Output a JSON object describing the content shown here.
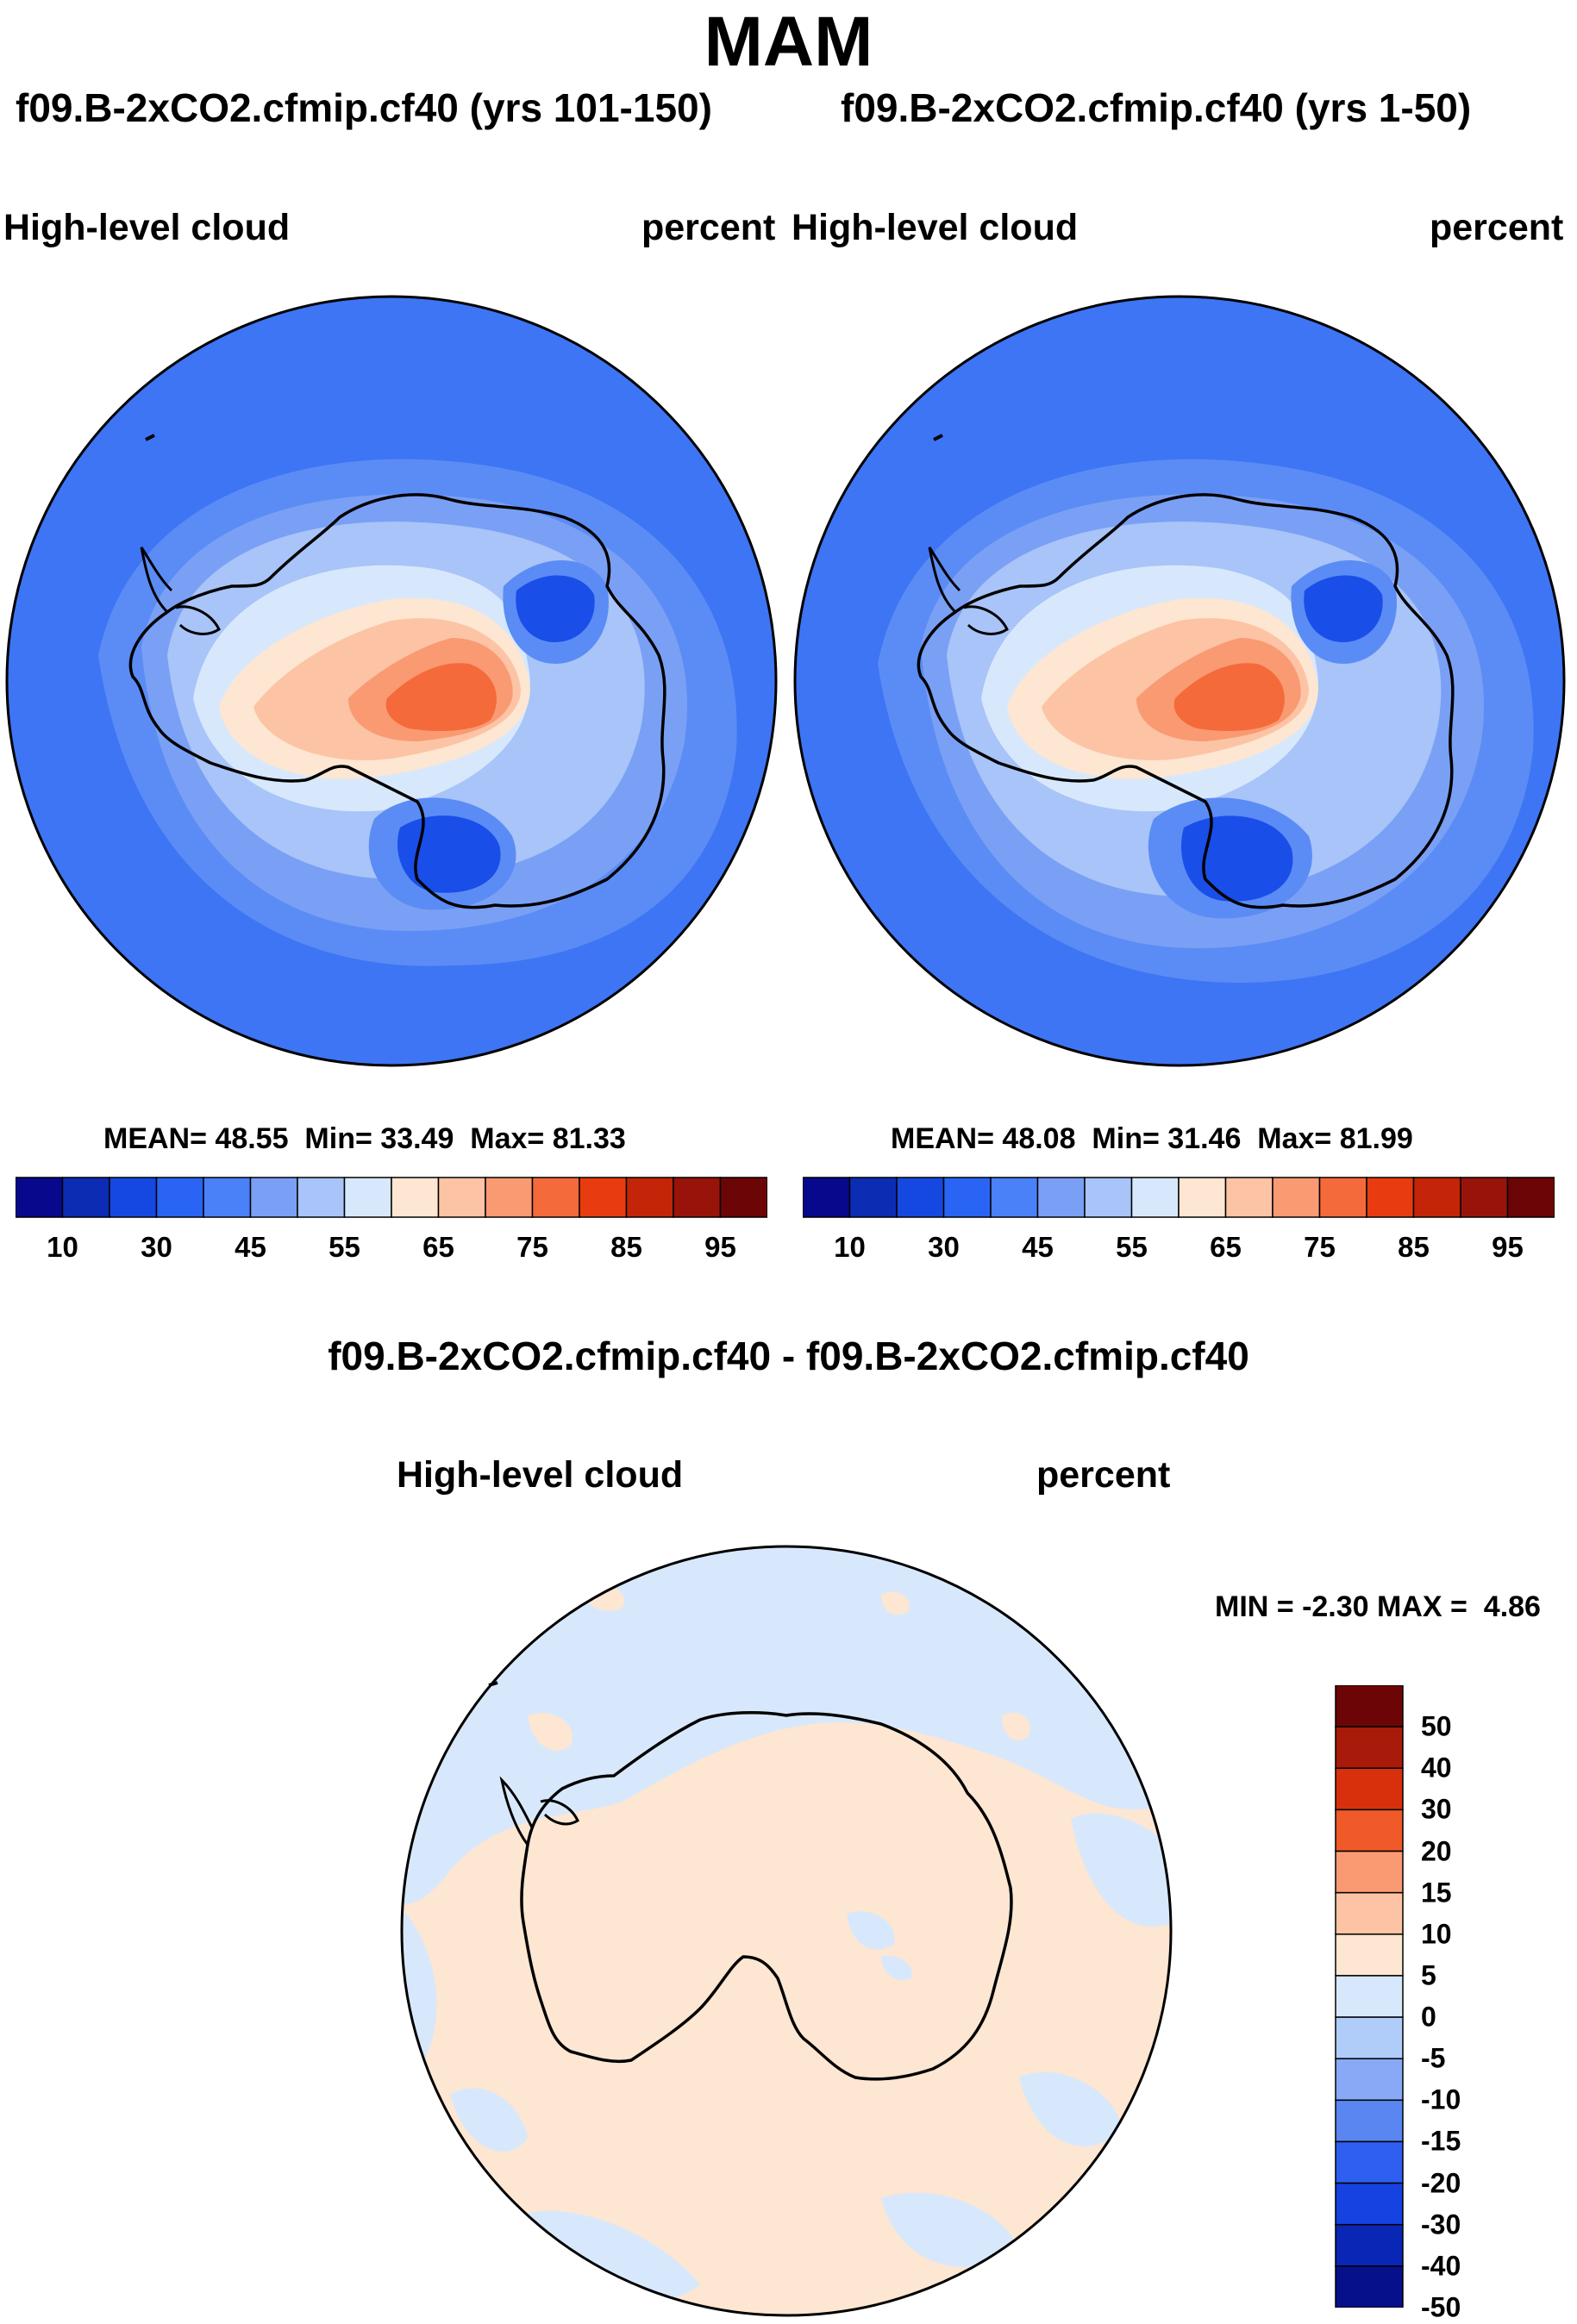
{
  "page": {
    "title": "MAM"
  },
  "panels": [
    {
      "run_title": "f09.B-2xCO2.cfmip.cf40 (yrs 101-150)",
      "left_label": "High-level cloud",
      "right_label": "percent",
      "stats": {
        "mean_label": "MEAN=",
        "mean": "48.55",
        "min_label": "Min=",
        "min": "33.49",
        "max_label": "Max=",
        "max": "81.33"
      }
    },
    {
      "run_title": "f09.B-2xCO2.cfmip.cf40 (yrs 1-50)",
      "left_label": "High-level cloud",
      "right_label": "percent",
      "stats": {
        "mean_label": "MEAN=",
        "mean": "48.08",
        "min_label": "Min=",
        "min": "31.46",
        "max_label": "Max=",
        "max": "81.99"
      }
    }
  ],
  "abs_colorbar": {
    "colors": [
      "#08088c",
      "#0c2cb4",
      "#1548e0",
      "#2a64f5",
      "#4a80f8",
      "#7aa0f5",
      "#a8c4f8",
      "#d8e8fc",
      "#fde6d2",
      "#fcc4a4",
      "#f99a72",
      "#f56a3a",
      "#e83c10",
      "#c42408",
      "#98140a",
      "#6c0606"
    ],
    "tick_labels": [
      "10",
      "30",
      "45",
      "55",
      "65",
      "75",
      "85",
      "95"
    ]
  },
  "diff": {
    "title": "f09.B-2xCO2.cfmip.cf40 - f09.B-2xCO2.cfmip.cf40",
    "left_label": "High-level cloud",
    "right_label": "percent",
    "minmax": {
      "min_label": "MIN =",
      "min": "-2.30",
      "max_label": "MAX =",
      "max": "4.86"
    }
  },
  "diff_colorbar": {
    "colors": [
      "#6c0606",
      "#a81a0a",
      "#d8300c",
      "#f05a28",
      "#f99a72",
      "#fcc4a4",
      "#fde6d2",
      "#d8e8fc",
      "#b0cdfa",
      "#88aaf6",
      "#5a86f2",
      "#2e5ff0",
      "#1542e0",
      "#0a26b4",
      "#06108a"
    ],
    "tick_labels": [
      "50",
      "40",
      "30",
      "20",
      "15",
      "10",
      "5",
      "0",
      "-5",
      "-10",
      "-15",
      "-20",
      "-30",
      "-40",
      "-50"
    ]
  },
  "map_colors": {
    "ocean_deep": "#3d75f4",
    "ocean_mid": "#5b8cf5",
    "ring_light": "#7aa0f5",
    "ring_lighter": "#a8c4f8",
    "pale": "#d8e8fc",
    "warm_pale": "#fde6d2",
    "warm_1": "#fcc4a4",
    "warm_2": "#f99a72",
    "warm_3": "#f56a3a",
    "cold_low": "#1a4ee8",
    "diff_pos": "#fde6d2",
    "diff_neg": "#d8e8fc"
  }
}
